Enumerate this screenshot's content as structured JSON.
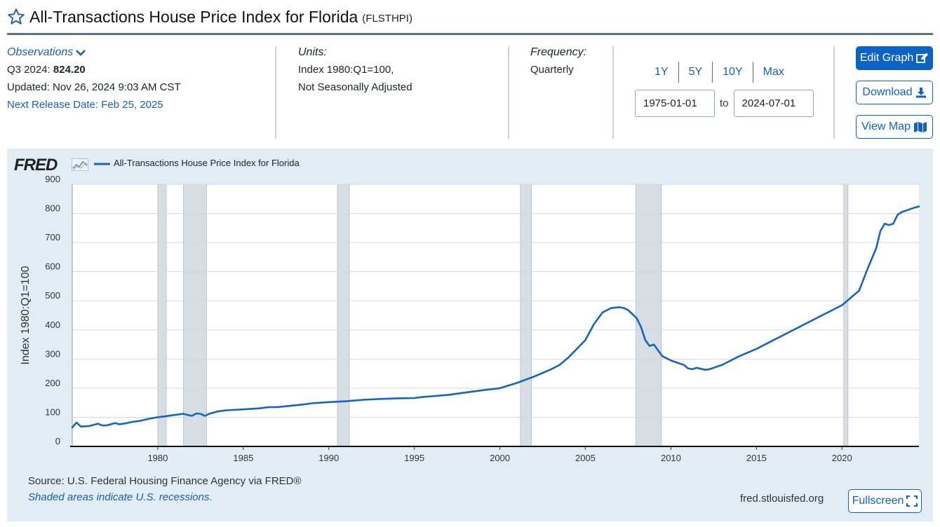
{
  "header": {
    "title": "All-Transactions House Price Index for Florida",
    "series_id": "(FLSTHPI)"
  },
  "observations": {
    "label": "Observations",
    "period": "Q3 2024:",
    "value": "824.20",
    "updated": "Updated: Nov 26, 2024 9:03 AM CST",
    "next_release": "Next Release Date: Feb 25, 2025"
  },
  "units": {
    "label": "Units:",
    "line1": "Index 1980:Q1=100,",
    "line2": "Not Seasonally Adjusted"
  },
  "frequency": {
    "label": "Frequency:",
    "value": "Quarterly"
  },
  "range": {
    "links": [
      "1Y",
      "5Y",
      "10Y",
      "Max"
    ],
    "start": "1975-01-01",
    "to_label": "to",
    "end": "2024-07-01"
  },
  "buttons": {
    "edit": "Edit Graph",
    "download": "Download",
    "view_map": "View Map",
    "fullscreen": "Fullscreen"
  },
  "footer": {
    "source": "Source: U.S. Federal Housing Finance Agency via FRED®",
    "recession_note": "Shaded areas indicate U.S. recessions.",
    "site": "fred.stlouisfed.org"
  },
  "logo_text": "FRED",
  "colors": {
    "series": "#1565c0",
    "recession": "#d6dde3",
    "panel": "#e1ecf5",
    "accent": "#0d63c5"
  },
  "chart_data": {
    "type": "line",
    "title": "All-Transactions House Price Index for Florida",
    "legend": [
      "All-Transactions House Price Index for Florida"
    ],
    "ylabel": "Index 1980:Q1=100",
    "xlabel": "",
    "xlim": [
      1975.0,
      2024.5
    ],
    "ylim": [
      0,
      900
    ],
    "yticks": [
      0,
      100,
      200,
      300,
      400,
      500,
      600,
      700,
      800,
      900
    ],
    "xticks": [
      1980,
      1985,
      1990,
      1995,
      2000,
      2005,
      2010,
      2015,
      2020
    ],
    "recessions": [
      [
        1980.0,
        1980.5
      ],
      [
        1981.5,
        1982.85
      ],
      [
        1990.5,
        1991.2
      ],
      [
        2001.2,
        2001.85
      ],
      [
        2007.95,
        2009.45
      ],
      [
        2020.1,
        2020.35
      ]
    ],
    "series": [
      {
        "name": "All-Transactions House Price Index for Florida",
        "x": [
          1975.0,
          1975.25,
          1975.5,
          1976.0,
          1976.5,
          1976.75,
          1977.0,
          1977.5,
          1977.75,
          1978.0,
          1978.5,
          1979.0,
          1979.5,
          1980.0,
          1980.5,
          1981.0,
          1981.5,
          1981.75,
          1982.0,
          1982.25,
          1982.5,
          1982.75,
          1983.0,
          1983.5,
          1984.0,
          1985.0,
          1986.0,
          1986.5,
          1987.0,
          1988.0,
          1988.5,
          1989.0,
          1990.0,
          1991.0,
          1992.0,
          1993.0,
          1994.0,
          1995.0,
          1995.5,
          1996.0,
          1997.0,
          1998.0,
          1999.0,
          2000.0,
          2001.0,
          2002.0,
          2003.0,
          2003.5,
          2004.0,
          2004.5,
          2005.0,
          2005.5,
          2006.0,
          2006.5,
          2007.0,
          2007.25,
          2007.5,
          2008.0,
          2008.25,
          2008.5,
          2008.75,
          2009.0,
          2009.25,
          2009.5,
          2010.0,
          2010.25,
          2010.5,
          2010.75,
          2011.0,
          2011.25,
          2011.5,
          2012.0,
          2012.25,
          2012.5,
          2013.0,
          2014.0,
          2015.0,
          2016.0,
          2017.0,
          2018.0,
          2019.0,
          2020.0,
          2020.5,
          2021.0,
          2021.5,
          2022.0,
          2022.25,
          2022.5,
          2022.75,
          2023.0,
          2023.25,
          2023.5,
          2024.0,
          2024.25,
          2024.5
        ],
        "values": [
          65,
          82,
          68,
          70,
          78,
          72,
          72,
          80,
          76,
          78,
          84,
          88,
          95,
          100,
          104,
          108,
          112,
          108,
          105,
          113,
          112,
          105,
          112,
          120,
          124,
          127,
          131,
          135,
          135,
          141,
          144,
          148,
          152,
          155,
          160,
          163,
          165,
          166,
          170,
          172,
          177,
          185,
          193,
          200,
          218,
          240,
          265,
          280,
          305,
          335,
          365,
          420,
          460,
          475,
          478,
          475,
          468,
          440,
          410,
          365,
          345,
          350,
          330,
          310,
          295,
          290,
          285,
          280,
          268,
          265,
          270,
          263,
          265,
          270,
          280,
          310,
          335,
          365,
          395,
          425,
          455,
          485,
          510,
          535,
          610,
          680,
          740,
          765,
          760,
          765,
          795,
          805,
          815,
          820,
          824
        ]
      }
    ]
  }
}
